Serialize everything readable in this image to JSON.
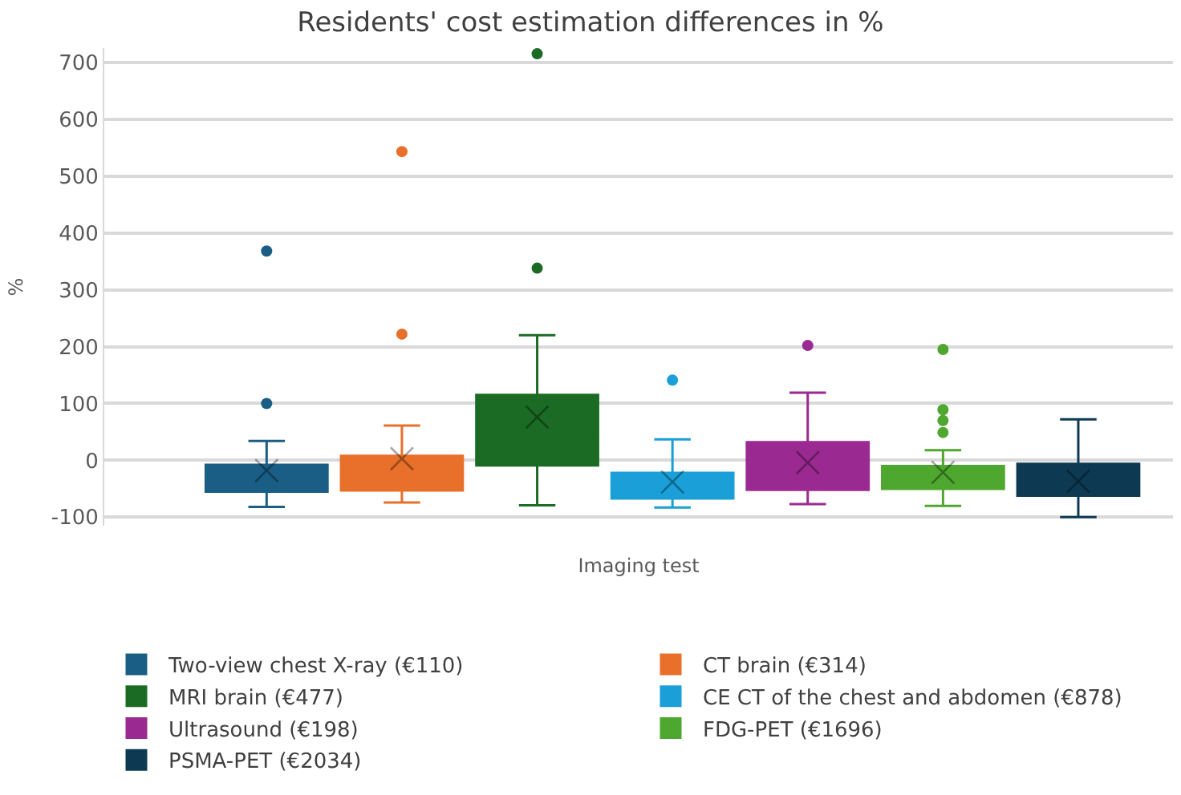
{
  "chart_data": {
    "type": "box",
    "title": "Residents' cost estimation differences in %",
    "xlabel": "Imaging test",
    "ylabel": "%",
    "categories": [
      null
    ],
    "ylim": [
      -115,
      725
    ],
    "yticks": [
      -100,
      0,
      100,
      200,
      300,
      400,
      500,
      600,
      700
    ],
    "grid": "y",
    "legend": "bottom",
    "marker": "circle",
    "series": [
      {
        "name": "Two-view chest X-ray (€110)",
        "color": "#1a5e85",
        "boxes": [
          {
            "low": -82,
            "q1": -55,
            "median": -30,
            "q3": -8,
            "high": 34,
            "mean": -18,
            "outliers": [
              100,
              368
            ]
          }
        ]
      },
      {
        "name": "CT brain (€314)",
        "color": "#e8702a",
        "boxes": [
          {
            "low": -74,
            "q1": -53,
            "median": -26,
            "q3": 8,
            "high": 61,
            "mean": 3,
            "outliers": [
              222,
              543
            ]
          }
        ]
      },
      {
        "name": "MRI brain (€477)",
        "color": "#1b6b25",
        "boxes": [
          {
            "low": -79,
            "q1": -9,
            "median": 46,
            "q3": 115,
            "high": 220,
            "mean": 76,
            "outliers": [
              338,
              715
            ]
          }
        ]
      },
      {
        "name": "CE CT of the chest and abdomen (€878)",
        "color": "#1a9fd8",
        "boxes": [
          {
            "low": -83,
            "q1": -67,
            "median": -43,
            "q3": -22,
            "high": 37,
            "mean": -38,
            "outliers": [
              141
            ]
          }
        ]
      },
      {
        "name": "Ultrasound (€198)",
        "color": "#9a2a91",
        "boxes": [
          {
            "low": -77,
            "q1": -52,
            "median": -20,
            "q3": 32,
            "high": 119,
            "mean": -4,
            "outliers": [
              202
            ]
          }
        ]
      },
      {
        "name": "FDG-PET (€1696)",
        "color": "#4ea72e",
        "boxes": [
          {
            "low": -80,
            "q1": -50,
            "median": -29,
            "q3": -10,
            "high": 18,
            "mean": -21,
            "outliers": [
              49,
              70,
              89,
              195
            ]
          }
        ]
      },
      {
        "name": "PSMA-PET (€2034)",
        "color": "#0d3a52",
        "boxes": [
          {
            "low": -100,
            "q1": -62,
            "median": -40,
            "q3": -6,
            "high": 72,
            "mean": -37
          }
        ]
      }
    ]
  }
}
